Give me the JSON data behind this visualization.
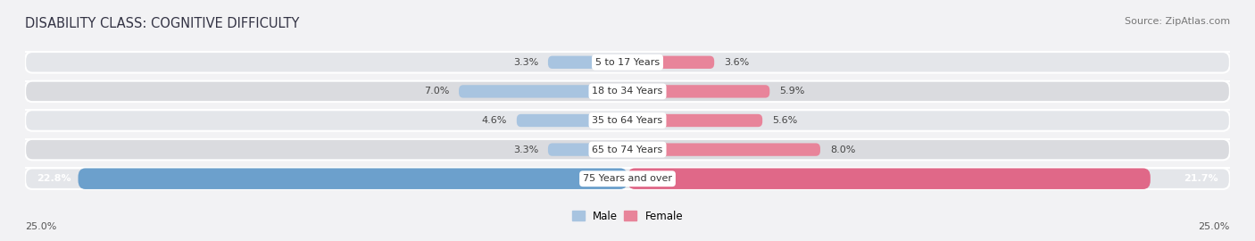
{
  "title": "DISABILITY CLASS: COGNITIVE DIFFICULTY",
  "source": "Source: ZipAtlas.com",
  "categories": [
    "5 to 17 Years",
    "18 to 34 Years",
    "35 to 64 Years",
    "65 to 74 Years",
    "75 Years and over"
  ],
  "male_values": [
    3.3,
    7.0,
    4.6,
    3.3,
    22.8
  ],
  "female_values": [
    3.6,
    5.9,
    5.6,
    8.0,
    21.7
  ],
  "max_value": 25.0,
  "male_color": "#a8c4e0",
  "female_color": "#e8849a",
  "male_color_last": "#6ca0cc",
  "female_color_last": "#e06888",
  "bg_color_odd": "#e8eaec",
  "bg_color_even": "#dcdee2",
  "bg_strip_color": "#d0d2d8",
  "title_fontsize": 10.5,
  "source_fontsize": 8,
  "legend_male": "Male",
  "legend_female": "Female",
  "axis_label": "25.0%"
}
